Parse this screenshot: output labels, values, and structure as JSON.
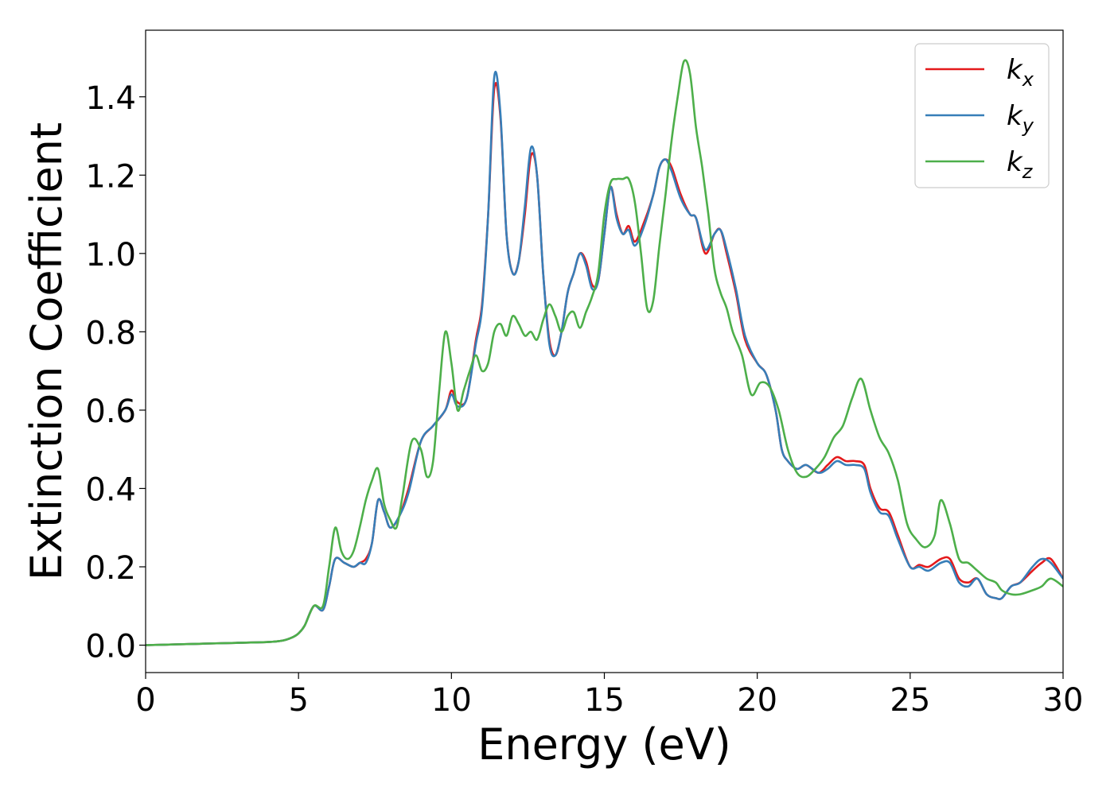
{
  "chart_data": {
    "type": "line",
    "title": "",
    "xlabel": "Energy (eV)",
    "ylabel": "Extinction Coefficient",
    "xlim": [
      0,
      30
    ],
    "ylim": [
      -0.07,
      1.57
    ],
    "xticks": [
      0,
      5,
      10,
      15,
      20,
      25,
      30
    ],
    "yticks": [
      0.0,
      0.2,
      0.4,
      0.6,
      0.8,
      1.0,
      1.2,
      1.4
    ],
    "xtick_labels": [
      "0",
      "5",
      "10",
      "15",
      "20",
      "25",
      "30"
    ],
    "ytick_labels": [
      "0.0",
      "0.2",
      "0.4",
      "0.6",
      "0.8",
      "1.0",
      "1.2",
      "1.4"
    ],
    "grid": false,
    "legend": {
      "placement": "top-right"
    },
    "series": [
      {
        "name": "k_x",
        "label_base": "k",
        "label_sub": "x",
        "color": "#e41a1c",
        "x": [
          0,
          1,
          2,
          3,
          4,
          4.5,
          4.8,
          5.0,
          5.2,
          5.5,
          5.8,
          6.0,
          6.2,
          6.5,
          6.8,
          7.0,
          7.2,
          7.4,
          7.6,
          7.8,
          8.0,
          8.3,
          8.6,
          9.0,
          9.4,
          9.8,
          10.0,
          10.2,
          10.5,
          10.8,
          11.0,
          11.2,
          11.4,
          11.6,
          11.8,
          12.0,
          12.2,
          12.4,
          12.6,
          12.8,
          13.0,
          13.2,
          13.4,
          13.6,
          13.8,
          14.0,
          14.2,
          14.4,
          14.6,
          14.8,
          15.0,
          15.2,
          15.4,
          15.6,
          15.8,
          16.0,
          16.3,
          16.6,
          16.8,
          17.0,
          17.2,
          17.5,
          17.8,
          18.0,
          18.3,
          18.6,
          18.8,
          19.0,
          19.3,
          19.6,
          20.0,
          20.3,
          20.6,
          20.8,
          21.0,
          21.3,
          21.6,
          22.0,
          22.3,
          22.6,
          22.9,
          23.2,
          23.5,
          23.7,
          24.0,
          24.3,
          24.6,
          25.0,
          25.3,
          25.6,
          26.0,
          26.3,
          26.6,
          26.9,
          27.2,
          27.5,
          27.8,
          28.0,
          28.3,
          28.6,
          29.0,
          29.3,
          29.6,
          30.0
        ],
        "y": [
          0.0,
          0.002,
          0.004,
          0.006,
          0.008,
          0.012,
          0.02,
          0.03,
          0.05,
          0.1,
          0.09,
          0.15,
          0.22,
          0.21,
          0.2,
          0.21,
          0.22,
          0.26,
          0.37,
          0.34,
          0.3,
          0.33,
          0.4,
          0.52,
          0.56,
          0.6,
          0.65,
          0.62,
          0.63,
          0.78,
          0.87,
          1.1,
          1.42,
          1.35,
          1.05,
          0.95,
          0.98,
          1.1,
          1.25,
          1.2,
          0.95,
          0.78,
          0.74,
          0.8,
          0.9,
          0.95,
          1.0,
          0.98,
          0.92,
          0.93,
          1.05,
          1.17,
          1.1,
          1.05,
          1.07,
          1.03,
          1.08,
          1.15,
          1.22,
          1.24,
          1.22,
          1.15,
          1.1,
          1.09,
          1.0,
          1.05,
          1.06,
          1.0,
          0.9,
          0.78,
          0.72,
          0.69,
          0.6,
          0.5,
          0.47,
          0.45,
          0.46,
          0.44,
          0.46,
          0.48,
          0.47,
          0.47,
          0.46,
          0.4,
          0.35,
          0.34,
          0.28,
          0.2,
          0.205,
          0.2,
          0.22,
          0.22,
          0.17,
          0.16,
          0.17,
          0.13,
          0.12,
          0.12,
          0.15,
          0.16,
          0.19,
          0.21,
          0.22,
          0.17
        ]
      },
      {
        "name": "k_y",
        "label_base": "k",
        "label_sub": "y",
        "color": "#377eb8",
        "x": [
          0,
          1,
          2,
          3,
          4,
          4.5,
          4.8,
          5.0,
          5.2,
          5.5,
          5.8,
          6.0,
          6.2,
          6.5,
          6.8,
          7.0,
          7.2,
          7.4,
          7.6,
          7.8,
          8.0,
          8.3,
          8.6,
          9.0,
          9.4,
          9.8,
          10.0,
          10.2,
          10.5,
          10.8,
          11.0,
          11.2,
          11.4,
          11.6,
          11.8,
          12.0,
          12.2,
          12.4,
          12.6,
          12.8,
          13.0,
          13.2,
          13.4,
          13.6,
          13.8,
          14.0,
          14.2,
          14.4,
          14.6,
          14.8,
          15.0,
          15.2,
          15.4,
          15.6,
          15.8,
          16.0,
          16.3,
          16.6,
          16.8,
          17.0,
          17.2,
          17.5,
          17.8,
          18.0,
          18.3,
          18.6,
          18.8,
          19.0,
          19.3,
          19.6,
          20.0,
          20.3,
          20.6,
          20.8,
          21.0,
          21.3,
          21.6,
          22.0,
          22.3,
          22.6,
          22.9,
          23.2,
          23.5,
          23.7,
          24.0,
          24.3,
          24.6,
          25.0,
          25.3,
          25.6,
          26.0,
          26.3,
          26.6,
          26.9,
          27.2,
          27.5,
          27.8,
          28.0,
          28.3,
          28.6,
          29.0,
          29.3,
          29.6,
          30.0
        ],
        "y": [
          0.0,
          0.002,
          0.004,
          0.006,
          0.008,
          0.012,
          0.02,
          0.03,
          0.05,
          0.1,
          0.09,
          0.15,
          0.22,
          0.21,
          0.2,
          0.21,
          0.21,
          0.26,
          0.37,
          0.34,
          0.3,
          0.33,
          0.39,
          0.52,
          0.56,
          0.6,
          0.64,
          0.61,
          0.63,
          0.77,
          0.86,
          1.1,
          1.45,
          1.36,
          1.05,
          0.95,
          0.98,
          1.12,
          1.27,
          1.2,
          0.95,
          0.77,
          0.74,
          0.8,
          0.9,
          0.95,
          1.0,
          0.97,
          0.91,
          0.93,
          1.05,
          1.17,
          1.09,
          1.05,
          1.06,
          1.02,
          1.07,
          1.15,
          1.22,
          1.24,
          1.21,
          1.14,
          1.1,
          1.09,
          1.01,
          1.05,
          1.06,
          1.01,
          0.91,
          0.79,
          0.72,
          0.69,
          0.6,
          0.5,
          0.47,
          0.45,
          0.46,
          0.44,
          0.45,
          0.47,
          0.46,
          0.46,
          0.45,
          0.39,
          0.34,
          0.33,
          0.27,
          0.2,
          0.2,
          0.19,
          0.21,
          0.21,
          0.16,
          0.15,
          0.17,
          0.13,
          0.12,
          0.12,
          0.15,
          0.16,
          0.2,
          0.22,
          0.21,
          0.17
        ]
      },
      {
        "name": "k_z",
        "label_base": "k",
        "label_sub": "z",
        "color": "#4daf4a",
        "x": [
          0,
          1,
          2,
          3,
          4,
          4.5,
          4.8,
          5.0,
          5.2,
          5.5,
          5.8,
          6.0,
          6.2,
          6.4,
          6.6,
          6.8,
          7.0,
          7.2,
          7.4,
          7.6,
          7.8,
          8.0,
          8.2,
          8.4,
          8.7,
          9.0,
          9.2,
          9.4,
          9.6,
          9.8,
          10.0,
          10.2,
          10.4,
          10.6,
          10.8,
          11.0,
          11.2,
          11.4,
          11.6,
          11.8,
          12.0,
          12.2,
          12.4,
          12.6,
          12.8,
          13.0,
          13.2,
          13.4,
          13.6,
          13.8,
          14.0,
          14.2,
          14.4,
          14.6,
          14.8,
          15.0,
          15.2,
          15.4,
          15.6,
          15.8,
          16.0,
          16.2,
          16.4,
          16.6,
          16.8,
          17.0,
          17.2,
          17.4,
          17.6,
          17.8,
          18.0,
          18.2,
          18.4,
          18.6,
          18.8,
          19.0,
          19.2,
          19.5,
          19.8,
          20.1,
          20.4,
          20.7,
          21.0,
          21.3,
          21.6,
          21.9,
          22.2,
          22.5,
          22.8,
          23.1,
          23.4,
          23.7,
          24.0,
          24.3,
          24.6,
          24.9,
          25.2,
          25.5,
          25.8,
          26.0,
          26.3,
          26.6,
          26.9,
          27.2,
          27.5,
          27.8,
          28.0,
          28.3,
          28.6,
          29.0,
          29.3,
          29.6,
          30.0
        ],
        "y": [
          0.0,
          0.002,
          0.004,
          0.006,
          0.008,
          0.012,
          0.02,
          0.03,
          0.05,
          0.1,
          0.1,
          0.2,
          0.3,
          0.24,
          0.22,
          0.24,
          0.3,
          0.37,
          0.42,
          0.45,
          0.36,
          0.32,
          0.3,
          0.38,
          0.52,
          0.5,
          0.43,
          0.47,
          0.65,
          0.8,
          0.72,
          0.6,
          0.65,
          0.7,
          0.74,
          0.7,
          0.72,
          0.8,
          0.82,
          0.79,
          0.84,
          0.82,
          0.79,
          0.8,
          0.78,
          0.83,
          0.87,
          0.84,
          0.8,
          0.84,
          0.85,
          0.81,
          0.85,
          0.89,
          0.95,
          1.1,
          1.18,
          1.19,
          1.19,
          1.19,
          1.13,
          1.0,
          0.86,
          0.88,
          1.02,
          1.15,
          1.29,
          1.4,
          1.49,
          1.46,
          1.32,
          1.22,
          1.1,
          0.96,
          0.9,
          0.86,
          0.8,
          0.74,
          0.64,
          0.67,
          0.66,
          0.6,
          0.5,
          0.44,
          0.43,
          0.45,
          0.48,
          0.53,
          0.56,
          0.63,
          0.68,
          0.6,
          0.53,
          0.49,
          0.42,
          0.31,
          0.27,
          0.25,
          0.28,
          0.37,
          0.31,
          0.22,
          0.21,
          0.19,
          0.17,
          0.16,
          0.14,
          0.13,
          0.13,
          0.14,
          0.15,
          0.17,
          0.15
        ]
      }
    ]
  }
}
